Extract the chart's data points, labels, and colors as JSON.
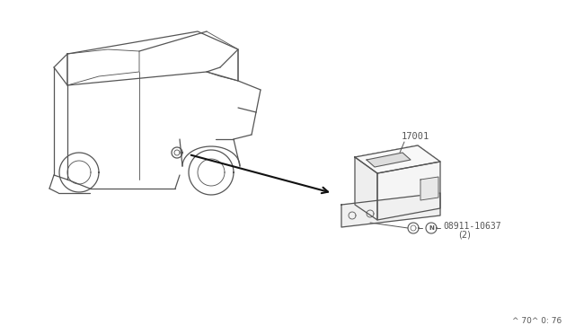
{
  "background_color": "#ffffff",
  "title": "",
  "fig_width": 6.4,
  "fig_height": 3.72,
  "dpi": 100,
  "part_number_label": "17001",
  "bolt_label": "08911-10637",
  "bolt_qty": "(2)",
  "n_symbol": "N",
  "page_ref": "^ 70^ 0: 76",
  "line_color": "#555555",
  "text_color": "#555555",
  "arrow_color": "#111111"
}
